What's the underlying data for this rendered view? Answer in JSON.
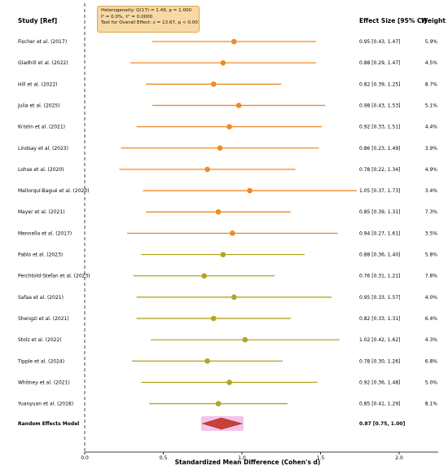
{
  "chart_data": {
    "type": "forest",
    "headers": {
      "study": "Study [Ref]",
      "effect": "Effect Size [95% CI]",
      "weight": "Weight"
    },
    "xlabel": "Standardized Mean Difference (Cohen's d)",
    "xlim": [
      -0.5,
      2.25
    ],
    "xticks": [
      0.0,
      0.5,
      1.0,
      1.5,
      2.0
    ],
    "xtick_labels": [
      "0.0",
      "0.5",
      "1.0",
      "1.5",
      "2.0"
    ],
    "reference_line": 0,
    "heterogeneity": {
      "line1": "Heterogeneity: Q(17) = 1.49, p = 1.000",
      "line2": "I² = 0.0%, τ² = 0.0000",
      "line3": "Test for Overall Effect: z = 13.67, p < 0.001"
    },
    "studies": [
      {
        "name": "Fischer et al. (2017)",
        "es": 0.95,
        "lo": 0.43,
        "hi": 1.47,
        "ci_text": "0.95 [0.43, 1.47]",
        "weight": "5.9%",
        "color": "#f08a24"
      },
      {
        "name": "Gladhill et al. (2022)",
        "es": 0.88,
        "lo": 0.29,
        "hi": 1.47,
        "ci_text": "0.88 [0.29, 1.47]",
        "weight": "4.5%",
        "color": "#f08a24"
      },
      {
        "name": "Hill et al. (2022)",
        "es": 0.82,
        "lo": 0.39,
        "hi": 1.25,
        "ci_text": "0.82 [0.39, 1.25]",
        "weight": "8.7%",
        "color": "#f08a24"
      },
      {
        "name": "Julia et al. (2025)",
        "es": 0.98,
        "lo": 0.43,
        "hi": 1.53,
        "ci_text": "0.98 [0.43, 1.53]",
        "weight": "5.1%",
        "color": "#f08a24"
      },
      {
        "name": "Kristin et al. (2021)",
        "es": 0.92,
        "lo": 0.33,
        "hi": 1.51,
        "ci_text": "0.92 [0.33, 1.51]",
        "weight": "4.4%",
        "color": "#f08a24"
      },
      {
        "name": "Lindsay et al. (2023)",
        "es": 0.86,
        "lo": 0.23,
        "hi": 1.49,
        "ci_text": "0.86 [0.23, 1.49]",
        "weight": "3.9%",
        "color": "#f08a24"
      },
      {
        "name": "Lohse et al. (2020)",
        "es": 0.78,
        "lo": 0.22,
        "hi": 1.34,
        "ci_text": "0.78 [0.22, 1.34]",
        "weight": "4.9%",
        "color": "#f08a24"
      },
      {
        "name": "Mallorquí-Bagué et al. (2020)",
        "es": 1.05,
        "lo": 0.37,
        "hi": 1.73,
        "ci_text": "1.05 [0.37, 1.73]",
        "weight": "3.4%",
        "color": "#f08a24"
      },
      {
        "name": "Mayer et al. (2021)",
        "es": 0.85,
        "lo": 0.39,
        "hi": 1.31,
        "ci_text": "0.85 [0.39, 1.31]",
        "weight": "7.3%",
        "color": "#f08a24"
      },
      {
        "name": "Mennella et al. (2017)",
        "es": 0.94,
        "lo": 0.27,
        "hi": 1.61,
        "ci_text": "0.94 [0.27, 1.61]",
        "weight": "3.5%",
        "color": "#f08a24"
      },
      {
        "name": "Pablo et al. (2023)",
        "es": 0.88,
        "lo": 0.36,
        "hi": 1.4,
        "ci_text": "0.88 [0.36, 1.40]",
        "weight": "5.8%",
        "color": "#b5a420"
      },
      {
        "name": "Perchtold-Stefan et al. (2023)",
        "es": 0.76,
        "lo": 0.31,
        "hi": 1.21,
        "ci_text": "0.76 [0.31, 1.21]",
        "weight": "7.8%",
        "color": "#b5a420"
      },
      {
        "name": "Safaa et al. (2021)",
        "es": 0.95,
        "lo": 0.33,
        "hi": 1.57,
        "ci_text": "0.95 [0.33, 1.57]",
        "weight": "4.0%",
        "color": "#b5a420"
      },
      {
        "name": "Shengzi et al. (2021)",
        "es": 0.82,
        "lo": 0.33,
        "hi": 1.31,
        "ci_text": "0.82 [0.33, 1.31]",
        "weight": "6.4%",
        "color": "#b5a420"
      },
      {
        "name": "Stolz et al. (2022)",
        "es": 1.02,
        "lo": 0.42,
        "hi": 1.62,
        "ci_text": "1.02 [0.42, 1.62]",
        "weight": "4.3%",
        "color": "#b5a420"
      },
      {
        "name": "Tipple et al. (2024)",
        "es": 0.78,
        "lo": 0.3,
        "hi": 1.26,
        "ci_text": "0.78 [0.30, 1.26]",
        "weight": "6.8%",
        "color": "#b5a420"
      },
      {
        "name": "Whitney et al. (2021)",
        "es": 0.92,
        "lo": 0.36,
        "hi": 1.48,
        "ci_text": "0.92 [0.36, 1.48]",
        "weight": "5.0%",
        "color": "#b5a420"
      },
      {
        "name": "Yuanyuan et al. (2018)",
        "es": 0.85,
        "lo": 0.41,
        "hi": 1.29,
        "ci_text": "0.85 [0.41, 1.29]",
        "weight": "8.1%",
        "color": "#b5a420"
      }
    ],
    "summary": {
      "name": "Random Effects Model",
      "es": 0.87,
      "lo": 0.75,
      "hi": 1.0,
      "ci_text": "0.87 [0.75, 1.00]",
      "color": "#c8403a",
      "band_color": "#e87ad0"
    }
  }
}
